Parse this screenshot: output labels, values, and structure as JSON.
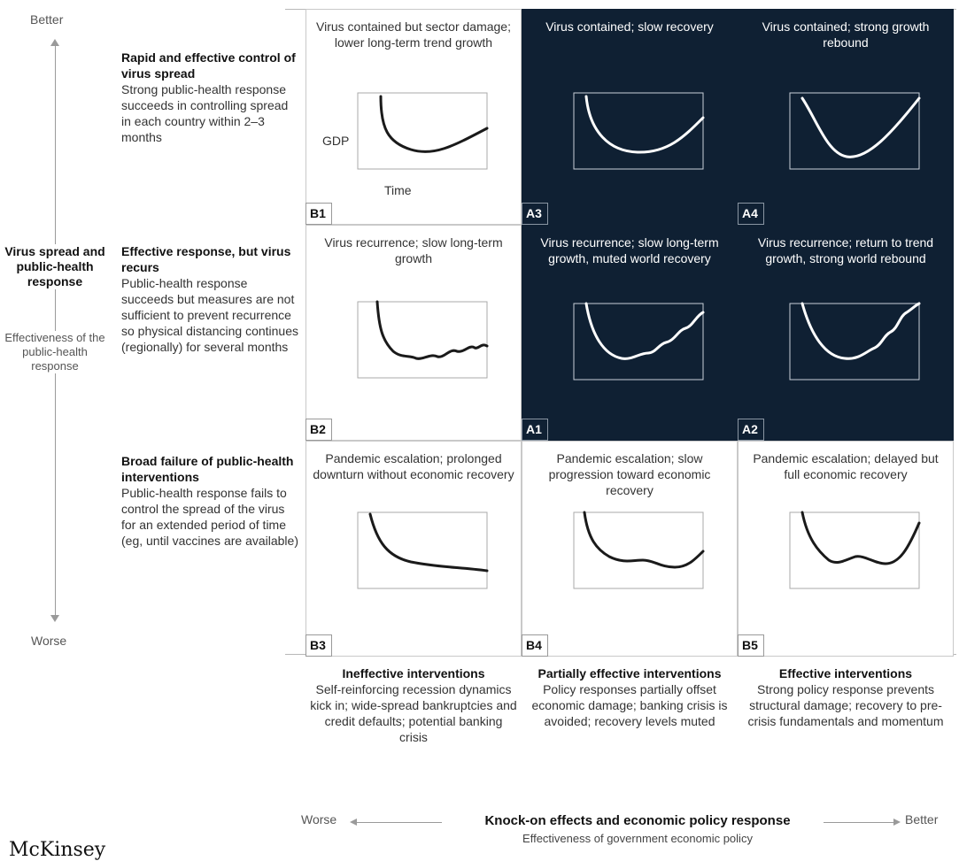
{
  "y_axis": {
    "top": "Better",
    "bottom": "Worse",
    "title": "Virus spread and public-health response",
    "subtitle": "Effectiveness of the public-health response"
  },
  "x_axis": {
    "left": "Worse",
    "right": "Better",
    "title": "Knock-on effects and economic policy response",
    "subtitle": "Effectiveness of government economic policy"
  },
  "rows": [
    {
      "title": "Rapid and effective control of virus spread",
      "desc": "Strong public-health response succeeds in controlling spread in each country within 2–3 months"
    },
    {
      "title": "Effective response, but virus recurs",
      "desc": "Public-health response succeeds but measures are not sufficient to prevent recurrence so physical distancing continues (regionally) for several months"
    },
    {
      "title": "Broad failure of public-health interventions",
      "desc": "Public-health response fails to control the spread of the virus for an extended period of time (eg, until vaccines are available)"
    }
  ],
  "columns": [
    {
      "title": "Ineffective interventions",
      "desc": "Self-reinforcing recession dynamics kick in; wide-spread bankruptcies and credit defaults; potential banking crisis"
    },
    {
      "title": "Partially effective interventions",
      "desc": "Policy responses partially offset economic damage; banking crisis is avoided; recovery levels muted"
    },
    {
      "title": "Effective interventions",
      "desc": "Strong policy response prevents structural damage; recovery to pre-crisis fundamentals and momentum"
    }
  ],
  "chart_labels": {
    "y": "GDP",
    "x": "Time"
  },
  "cells": [
    {
      "code": "B1",
      "title": "Virus contained but sector damage; lower long-term trend growth",
      "dark": false
    },
    {
      "code": "A3",
      "title": "Virus contained; slow recovery",
      "dark": true
    },
    {
      "code": "A4",
      "title": "Virus contained; strong growth rebound",
      "dark": true
    },
    {
      "code": "B2",
      "title": "Virus recurrence; slow long-term growth",
      "dark": false
    },
    {
      "code": "A1",
      "title": "Virus recurrence; slow long-term growth, muted world recovery",
      "dark": true
    },
    {
      "code": "A2",
      "title": "Virus recurrence; return to trend growth, strong world rebound",
      "dark": true
    },
    {
      "code": "B3",
      "title": "Pandemic escalation; prolonged downturn without economic recovery",
      "dark": false
    },
    {
      "code": "B4",
      "title": "Pandemic escalation; slow progression toward economic recovery",
      "dark": false
    },
    {
      "code": "B5",
      "title": "Pandemic escalation; delayed but full economic recovery",
      "dark": false
    }
  ],
  "colors": {
    "dark_cell": "#0f2033",
    "line_dark_bg": "#ffffff",
    "line_light_bg": "#1a1a1a"
  },
  "brand": "McKinsey"
}
